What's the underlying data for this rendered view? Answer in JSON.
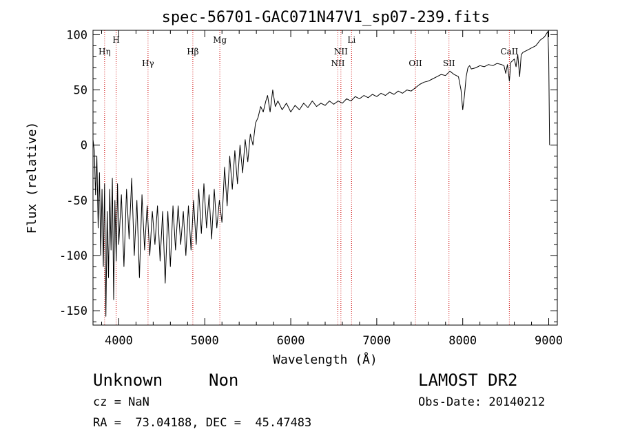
{
  "chart_data": {
    "type": "line",
    "title": "spec-56701-GAC071N47V1_sp07-239.fits",
    "xlabel": "Wavelength (Å)",
    "ylabel": "Flux (relative)",
    "xlim": [
      3700,
      9100
    ],
    "ylim": [
      -163,
      104
    ],
    "x_ticks": [
      4000,
      5000,
      6000,
      7000,
      8000,
      9000
    ],
    "y_ticks": [
      -150,
      -100,
      -50,
      0,
      50,
      100
    ],
    "series": [
      {
        "points": [
          [
            3700,
            5
          ],
          [
            3715,
            -5
          ],
          [
            3730,
            -45
          ],
          [
            3745,
            -10
          ],
          [
            3760,
            -75
          ],
          [
            3775,
            -25
          ],
          [
            3790,
            -100
          ],
          [
            3805,
            -40
          ],
          [
            3820,
            -110
          ],
          [
            3835,
            -35
          ],
          [
            3850,
            -155
          ],
          [
            3865,
            -60
          ],
          [
            3880,
            -120
          ],
          [
            3895,
            -40
          ],
          [
            3910,
            -95
          ],
          [
            3925,
            -30
          ],
          [
            3940,
            -140
          ],
          [
            3955,
            -50
          ],
          [
            3970,
            -105
          ],
          [
            3985,
            -35
          ],
          [
            4000,
            -90
          ],
          [
            4030,
            -45
          ],
          [
            4060,
            -110
          ],
          [
            4090,
            -40
          ],
          [
            4120,
            -85
          ],
          [
            4150,
            -30
          ],
          [
            4180,
            -100
          ],
          [
            4210,
            -50
          ],
          [
            4240,
            -120
          ],
          [
            4270,
            -45
          ],
          [
            4300,
            -95
          ],
          [
            4330,
            -55
          ],
          [
            4360,
            -100
          ],
          [
            4390,
            -60
          ],
          [
            4420,
            -90
          ],
          [
            4450,
            -55
          ],
          [
            4480,
            -105
          ],
          [
            4510,
            -60
          ],
          [
            4540,
            -125
          ],
          [
            4570,
            -60
          ],
          [
            4600,
            -110
          ],
          [
            4630,
            -55
          ],
          [
            4660,
            -95
          ],
          [
            4690,
            -55
          ],
          [
            4720,
            -90
          ],
          [
            4750,
            -60
          ],
          [
            4780,
            -100
          ],
          [
            4810,
            -55
          ],
          [
            4840,
            -95
          ],
          [
            4870,
            -50
          ],
          [
            4900,
            -90
          ],
          [
            4930,
            -40
          ],
          [
            4960,
            -80
          ],
          [
            4990,
            -35
          ],
          [
            5020,
            -75
          ],
          [
            5050,
            -45
          ],
          [
            5080,
            -85
          ],
          [
            5110,
            -40
          ],
          [
            5140,
            -75
          ],
          [
            5170,
            -50
          ],
          [
            5200,
            -70
          ],
          [
            5230,
            -20
          ],
          [
            5260,
            -55
          ],
          [
            5290,
            -10
          ],
          [
            5320,
            -40
          ],
          [
            5350,
            -5
          ],
          [
            5380,
            -35
          ],
          [
            5410,
            0
          ],
          [
            5440,
            -25
          ],
          [
            5470,
            5
          ],
          [
            5500,
            -15
          ],
          [
            5530,
            10
          ],
          [
            5560,
            0
          ],
          [
            5590,
            20
          ],
          [
            5620,
            25
          ],
          [
            5650,
            35
          ],
          [
            5680,
            30
          ],
          [
            5710,
            40
          ],
          [
            5730,
            45
          ],
          [
            5760,
            30
          ],
          [
            5790,
            50
          ],
          [
            5820,
            35
          ],
          [
            5850,
            40
          ],
          [
            5900,
            32
          ],
          [
            5950,
            38
          ],
          [
            6000,
            30
          ],
          [
            6050,
            36
          ],
          [
            6100,
            32
          ],
          [
            6150,
            38
          ],
          [
            6200,
            34
          ],
          [
            6250,
            40
          ],
          [
            6300,
            35
          ],
          [
            6350,
            38
          ],
          [
            6400,
            36
          ],
          [
            6450,
            40
          ],
          [
            6500,
            37
          ],
          [
            6550,
            40
          ],
          [
            6600,
            38
          ],
          [
            6650,
            42
          ],
          [
            6700,
            40
          ],
          [
            6750,
            44
          ],
          [
            6800,
            42
          ],
          [
            6850,
            45
          ],
          [
            6900,
            43
          ],
          [
            6950,
            46
          ],
          [
            7000,
            44
          ],
          [
            7050,
            47
          ],
          [
            7100,
            45
          ],
          [
            7150,
            48
          ],
          [
            7200,
            46
          ],
          [
            7250,
            49
          ],
          [
            7300,
            47
          ],
          [
            7350,
            50
          ],
          [
            7400,
            49
          ],
          [
            7450,
            52
          ],
          [
            7500,
            55
          ],
          [
            7550,
            57
          ],
          [
            7600,
            58
          ],
          [
            7650,
            60
          ],
          [
            7700,
            62
          ],
          [
            7750,
            64
          ],
          [
            7800,
            63
          ],
          [
            7850,
            67
          ],
          [
            7900,
            64
          ],
          [
            7950,
            62
          ],
          [
            7980,
            50
          ],
          [
            8000,
            32
          ],
          [
            8020,
            45
          ],
          [
            8040,
            62
          ],
          [
            8060,
            70
          ],
          [
            8080,
            72
          ],
          [
            8100,
            69
          ],
          [
            8150,
            70
          ],
          [
            8200,
            72
          ],
          [
            8250,
            71
          ],
          [
            8300,
            73
          ],
          [
            8350,
            72
          ],
          [
            8400,
            74
          ],
          [
            8450,
            73
          ],
          [
            8480,
            72
          ],
          [
            8500,
            65
          ],
          [
            8520,
            73
          ],
          [
            8542,
            58
          ],
          [
            8560,
            75
          ],
          [
            8600,
            78
          ],
          [
            8620,
            71
          ],
          [
            8640,
            82
          ],
          [
            8662,
            62
          ],
          [
            8680,
            82
          ],
          [
            8700,
            84
          ],
          [
            8750,
            86
          ],
          [
            8800,
            88
          ],
          [
            8850,
            90
          ],
          [
            8900,
            95
          ],
          [
            8950,
            98
          ],
          [
            8990,
            103
          ],
          [
            9000,
            80
          ],
          [
            9010,
            0
          ]
        ]
      }
    ],
    "lines": [
      {
        "label": "Hη",
        "x": 3835,
        "row": 1
      },
      {
        "label": "H",
        "x": 3969,
        "row": 0
      },
      {
        "label": "Hγ",
        "x": 4340,
        "row": 2
      },
      {
        "label": "Hβ",
        "x": 4861,
        "row": 1
      },
      {
        "label": "Mg",
        "x": 5175,
        "row": 0
      },
      {
        "label": "NII",
        "x": 6548,
        "row": 2
      },
      {
        "label": "NII",
        "x": 6583,
        "row": 1
      },
      {
        "label": "Li",
        "x": 6707,
        "row": 0
      },
      {
        "label": "OII",
        "x": 7450,
        "row": 2
      },
      {
        "label": "SII",
        "x": 7840,
        "row": 2
      },
      {
        "label": "CaII",
        "x": 8542,
        "row": 1
      }
    ]
  },
  "info": {
    "class": "Unknown",
    "subclass": "Non",
    "survey": "LAMOST DR2",
    "cz": "cz = NaN",
    "obs_date": "Obs-Date: 20140212",
    "radec": "RA =  73.04188, DEC =  45.47483"
  },
  "colors": {
    "line_marker": "#cc0000",
    "spectrum": "#000000",
    "axes": "#000000"
  }
}
